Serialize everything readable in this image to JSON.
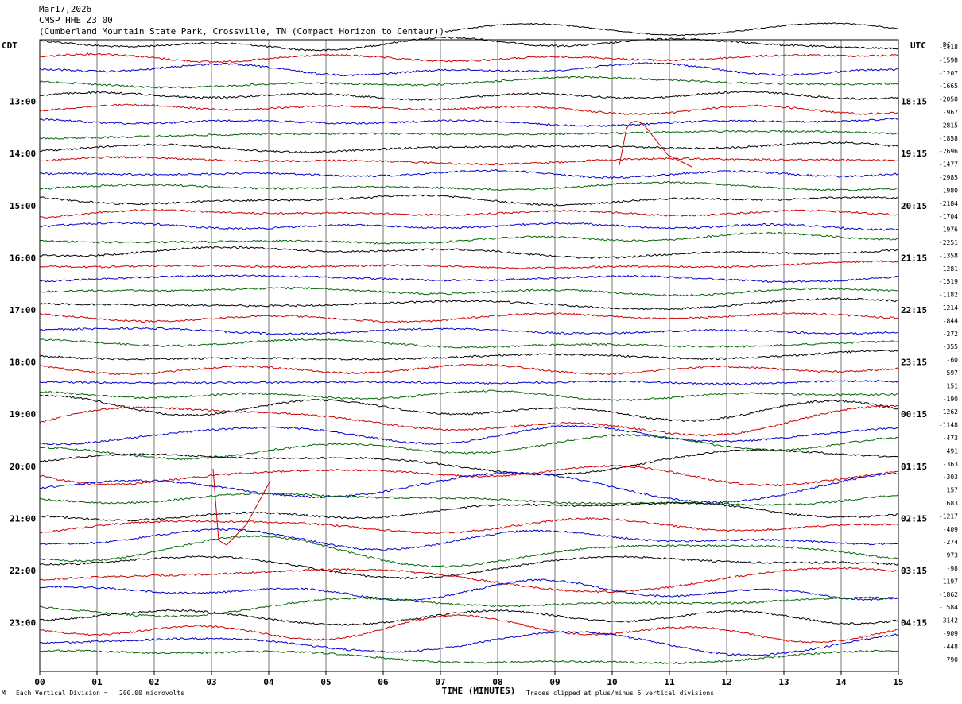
{
  "header": {
    "date": "Mar17,2026",
    "station": "CMSP HHE Z3 00",
    "location": "(Cumberland Mountain State Park, Crossville, TN (Compact Horizon to Centaur))"
  },
  "left_zone_label": "CDT",
  "right_zone_label": "UTC",
  "dc_header": "DC",
  "footer": {
    "vertical_division": "Each Vertical Division =   200.00 microvolts",
    "x_axis_title": "TIME (MINUTES)",
    "clip_note": "Traces clipped at plus/minus 5 vertical divisions",
    "corner_mark": "M"
  },
  "chart_data": {
    "type": "line",
    "title": "CMSP HHE Z3 00",
    "xlabel": "TIME (MINUTES)",
    "x_ticks": [
      "00",
      "01",
      "02",
      "03",
      "04",
      "05",
      "06",
      "07",
      "08",
      "09",
      "10",
      "11",
      "12",
      "13",
      "14",
      "15"
    ],
    "xlim": [
      0,
      15
    ],
    "left_time_labels": [
      "13:00",
      "14:00",
      "15:00",
      "16:00",
      "17:00",
      "18:00",
      "19:00",
      "20:00",
      "21:00",
      "22:00",
      "23:00"
    ],
    "right_time_labels": [
      "18:15",
      "19:15",
      "20:15",
      "21:15",
      "22:15",
      "23:15",
      "00:15",
      "01:15",
      "02:15",
      "03:15",
      "04:15"
    ],
    "trace_colors": [
      "#000000",
      "#cc0000",
      "#0000cc",
      "#006600"
    ],
    "dc_offsets": [
      "-1418",
      "-1598",
      "-1207",
      "-1665",
      "-2050",
      "-967",
      "-2815",
      "-1858",
      "-2696",
      "-1477",
      "-2985",
      "-1980",
      "-2184",
      "-1704",
      "-1976",
      "-2251",
      "-1358",
      "-1281",
      "-1519",
      "-1182",
      "-1214",
      "-844",
      "-272",
      "-355",
      "-60",
      "597",
      "151",
      "-190",
      "-1262",
      "-1148",
      "-473",
      "491",
      "-363",
      "-303",
      "157",
      "683",
      "-1217",
      "-409",
      "-274",
      "973",
      "-98",
      "-1197",
      "-1862",
      "-1584",
      "-3142",
      "-909",
      "-448",
      "790"
    ],
    "vertical_division_microvolts": 200.0,
    "clip_divisions": 5
  }
}
